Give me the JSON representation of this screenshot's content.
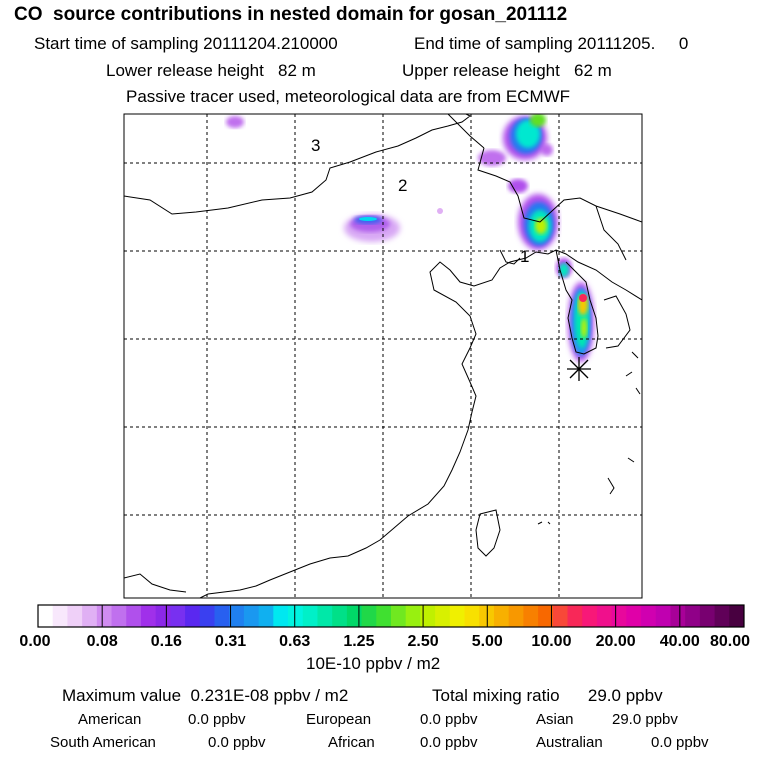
{
  "header": {
    "title": "CO  source contributions in nested domain for gosan_201112",
    "start_label": "Start time of sampling 20111204.210000",
    "end_label": "End time of sampling 20111205.     0",
    "lower_label": "Lower release height   82 m",
    "upper_label": "Upper release height   62 m",
    "tracer_label": "Passive tracer used, meteorological data are from ECMWF"
  },
  "map": {
    "region_labels": [
      "3",
      "2",
      "1"
    ],
    "receptor_marker": "asterisk-icon"
  },
  "colorbar": {
    "tick_labels": [
      "0.00",
      "0.08",
      "0.16",
      "0.31",
      "0.63",
      "1.25",
      "2.50",
      "5.00",
      "10.00",
      "20.00",
      "40.00",
      "80.00"
    ],
    "unit_label": "10E-10 ppbv / m2",
    "colors": [
      "#ffffff",
      "#f8e8fc",
      "#efd0f8",
      "#e0b0f4",
      "#d08cf0",
      "#c070ee",
      "#b050ec",
      "#a030ea",
      "#8c28e8",
      "#7830f0",
      "#5a28f0",
      "#3a40f0",
      "#2860f0",
      "#2080f0",
      "#1a98f0",
      "#10b0f0",
      "#00e8f0",
      "#00f4e0",
      "#00f0c8",
      "#00e8a8",
      "#00e088",
      "#00d868",
      "#20d848",
      "#40e030",
      "#70e820",
      "#98f010",
      "#c0f000",
      "#d8f000",
      "#f0f000",
      "#f8e000",
      "#f8c800",
      "#f8b000",
      "#f89800",
      "#f88000",
      "#f86800",
      "#f84838",
      "#f82858",
      "#f81878",
      "#f0108c",
      "#e8089c",
      "#e000a8",
      "#d000b0",
      "#c000b0",
      "#a80098",
      "#900088",
      "#780070",
      "#600058",
      "#480040"
    ]
  },
  "footer": {
    "max_label": "Maximum value  0.231E-08 ppbv / m2",
    "total_label": "Total mixing ratio      29.0 ppbv",
    "regions": [
      {
        "name": "American",
        "value": "0.0 ppbv"
      },
      {
        "name": "European",
        "value": "0.0 ppbv"
      },
      {
        "name": "Asian",
        "value": "29.0 ppbv"
      },
      {
        "name": "South American",
        "value": "0.0 ppbv"
      },
      {
        "name": "African",
        "value": "0.0 ppbv"
      },
      {
        "name": "Australian",
        "value": "0.0 ppbv"
      }
    ]
  }
}
